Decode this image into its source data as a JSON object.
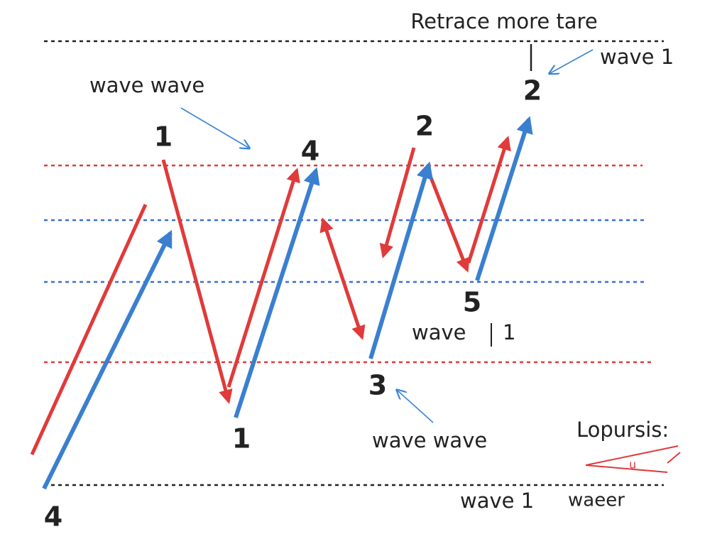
{
  "title": "Retrace more tare",
  "labels": [
    "wave 1",
    "2",
    "wave wave",
    "1",
    "4",
    "2",
    "5",
    "wave",
    "1",
    "3",
    "wave wave",
    "1",
    "Lopursis:",
    "u",
    "wave 1",
    "waeer",
    "4"
  ]
}
